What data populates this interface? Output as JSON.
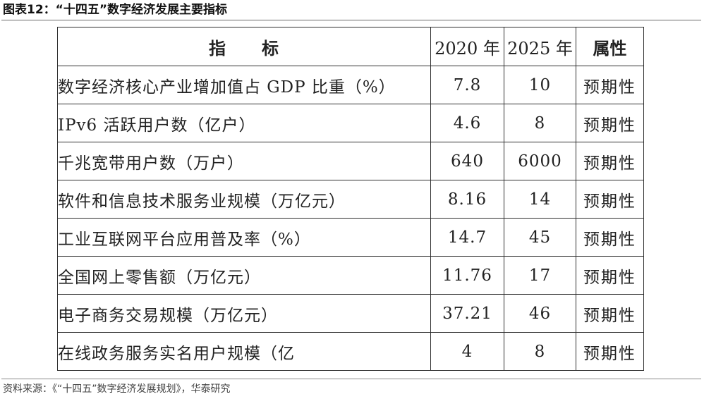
{
  "title": "图表12：“十四五”数字经济发展主要指标",
  "table": {
    "headers": {
      "indicator": "指　　标",
      "y2020": "2020 年",
      "y2025": "2025 年",
      "attribute": "属性"
    },
    "rows": [
      {
        "indicator": "数字经济核心产业增加值占 GDP 比重（%）",
        "y2020": "7.8",
        "y2025": "10",
        "attribute": "预期性"
      },
      {
        "indicator": "IPv6 活跃用户数（亿户）",
        "y2020": "4.6",
        "y2025": "8",
        "attribute": "预期性"
      },
      {
        "indicator": "千兆宽带用户数（万户）",
        "y2020": "640",
        "y2025": "6000",
        "attribute": "预期性"
      },
      {
        "indicator": "软件和信息技术服务业规模（万亿元）",
        "y2020": "8.16",
        "y2025": "14",
        "attribute": "预期性"
      },
      {
        "indicator": "工业互联网平台应用普及率（%）",
        "y2020": "14.7",
        "y2025": "45",
        "attribute": "预期性"
      },
      {
        "indicator": "全国网上零售额（万亿元）",
        "y2020": "11.76",
        "y2025": "17",
        "attribute": "预期性"
      },
      {
        "indicator": "电子商务交易规模（万亿元）",
        "y2020": "37.21",
        "y2025": "46",
        "attribute": "预期性"
      },
      {
        "indicator": "在线政务服务实名用户规模（亿",
        "y2020": "4",
        "y2025": "8",
        "attribute": "预期性"
      }
    ]
  },
  "source": "资料来源：《“十四五”数字经济发展规划》，华泰研究"
}
